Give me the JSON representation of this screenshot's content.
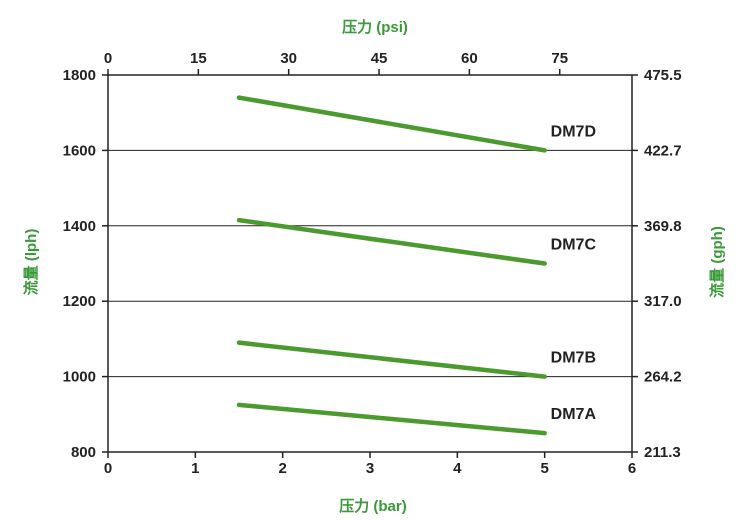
{
  "chart_data": {
    "type": "line",
    "title": "",
    "xlabel": "压力 (bar)",
    "x2label": "压力 (psi)",
    "ylabel": "流量 (lph)",
    "y2label": "流量 (gph)",
    "xlim": [
      0,
      6
    ],
    "x2lim": [
      0,
      87
    ],
    "ylim": [
      800,
      1800
    ],
    "x_ticks": [
      0,
      1,
      2,
      3,
      4,
      5,
      6
    ],
    "x2_ticks": [
      0,
      15,
      30,
      45,
      60,
      75
    ],
    "y_ticks": [
      800,
      1000,
      1200,
      1400,
      1600,
      1800
    ],
    "y2_ticks": [
      "211.3",
      "264.2",
      "317.0",
      "369.8",
      "422.7",
      "475.5"
    ],
    "grid": "horizontal",
    "series": [
      {
        "name": "DM7D",
        "x": [
          1.5,
          5
        ],
        "y": [
          1740,
          1600
        ]
      },
      {
        "name": "DM7C",
        "x": [
          1.5,
          5
        ],
        "y": [
          1415,
          1300
        ]
      },
      {
        "name": "DM7B",
        "x": [
          1.5,
          5
        ],
        "y": [
          1090,
          1000
        ]
      },
      {
        "name": "DM7A",
        "x": [
          1.5,
          5
        ],
        "y": [
          925,
          850
        ]
      }
    ],
    "colors": {
      "line": "#4a9a2e",
      "axis_title": "#3a9a3a",
      "grid": "#222222"
    }
  }
}
